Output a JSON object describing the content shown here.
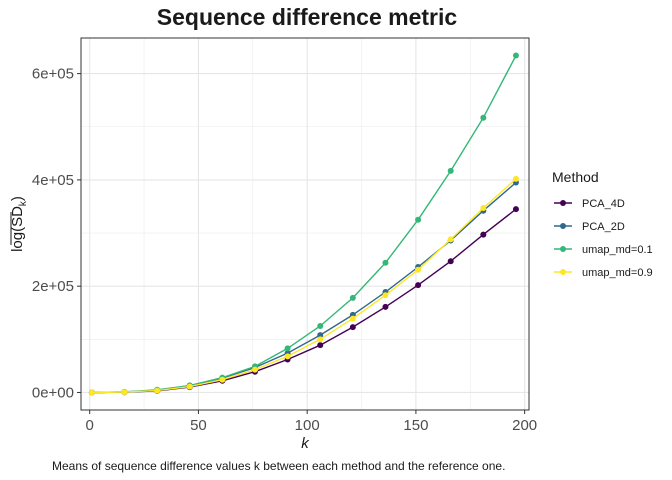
{
  "chart_data": {
    "type": "line",
    "title": "Sequence difference metric",
    "xlabel": "k",
    "ylabel_base": "log(SD",
    "ylabel_sub": "k",
    "ylabel_close": ")",
    "caption": "Means of sequence difference values k  between each method and the reference one.",
    "xlim": [
      -4,
      202
    ],
    "ylim": [
      -33000,
      667000
    ],
    "x_ticks": [
      0,
      50,
      100,
      150,
      200
    ],
    "x_tick_labels": [
      "0",
      "50",
      "100",
      "150",
      "200"
    ],
    "y_ticks": [
      0,
      200000,
      400000,
      600000
    ],
    "y_tick_labels": [
      "0e+00",
      "2e+05",
      "4e+05",
      "6e+05"
    ],
    "grid": true,
    "legend_title": "Method",
    "legend_position": "right",
    "x": [
      1,
      16,
      31,
      46,
      61,
      76,
      91,
      106,
      121,
      136,
      151,
      166,
      181,
      196
    ],
    "series": [
      {
        "name": "PCA_4D",
        "color": "#440154",
        "values": [
          0,
          500,
          3000,
          10000,
          22000,
          39000,
          62000,
          89000,
          123000,
          161000,
          202000,
          247000,
          297000,
          345000
        ]
      },
      {
        "name": "PCA_2D",
        "color": "#31688E",
        "values": [
          0,
          800,
          4000,
          13000,
          27000,
          47000,
          74000,
          108000,
          146000,
          189000,
          236000,
          286000,
          342000,
          395000
        ]
      },
      {
        "name": "umap_md=0.1",
        "color": "#35B779",
        "values": [
          0,
          1000,
          5000,
          13000,
          28000,
          49000,
          83000,
          125000,
          178000,
          244000,
          325000,
          417000,
          517000,
          634000
        ]
      },
      {
        "name": "umap_md=0.9",
        "color": "#FDE725",
        "values": [
          0,
          600,
          3500,
          11000,
          24000,
          43000,
          68000,
          100000,
          139000,
          183000,
          231000,
          288000,
          347000,
          402000
        ]
      }
    ]
  }
}
